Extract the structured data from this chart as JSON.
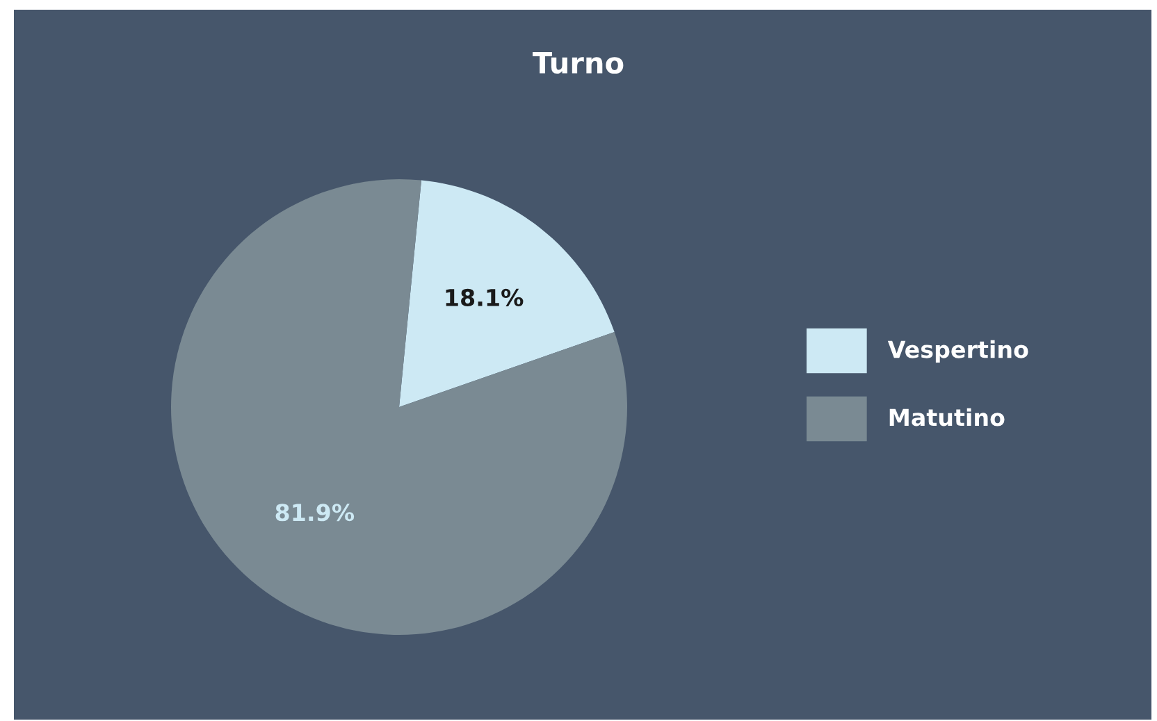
{
  "chart_data": {
    "type": "pie",
    "title": "Turno",
    "categories": [
      "Vespertino",
      "Matutino"
    ],
    "values": [
      18.1,
      81.9
    ],
    "colors": [
      "#cde9f4",
      "#7a8a93"
    ],
    "value_labels": [
      "18.1%",
      "81.9%"
    ],
    "legend": "right"
  }
}
